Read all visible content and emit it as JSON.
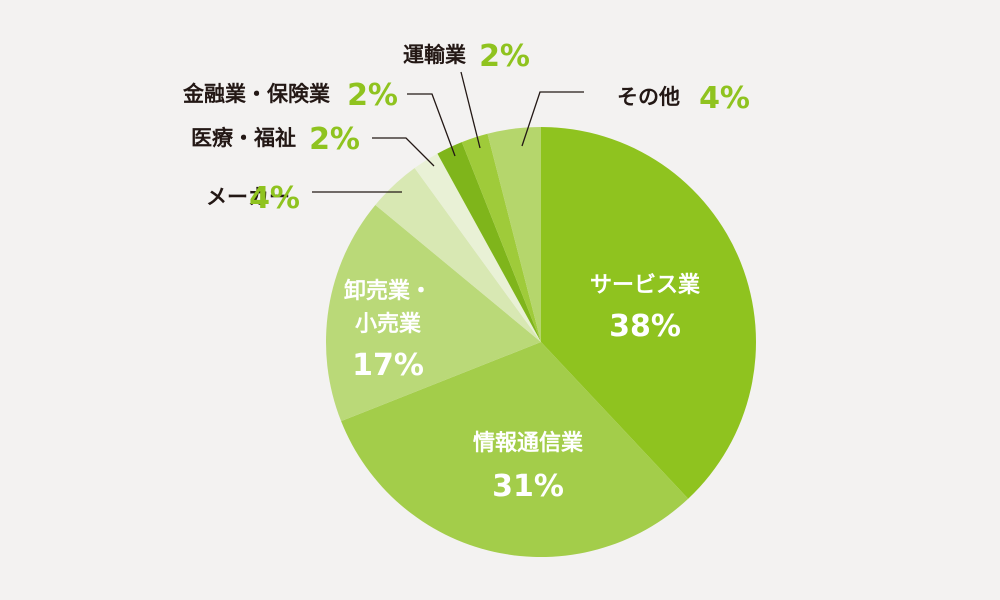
{
  "chart_data": {
    "type": "pie",
    "start": "top",
    "direction": "clockwise",
    "slices": [
      {
        "label": "サービス業",
        "value": 38,
        "value_label": "38%",
        "color": "#8fc31f",
        "label_color": "#ffffff",
        "label_inside": true
      },
      {
        "label": "情報通信業",
        "value": 31,
        "value_label": "31%",
        "color": "#a3cd4a",
        "label_color": "#ffffff",
        "label_inside": true
      },
      {
        "label": "卸売業・小売業",
        "label_lines": [
          "卸売業・",
          "小売業"
        ],
        "value": 17,
        "value_label": "17%",
        "color": "#bad978",
        "label_color": "#ffffff",
        "label_inside": true
      },
      {
        "label": "メーカー",
        "value": 4,
        "value_label": "4%",
        "color": "#d8e8b3",
        "label_color": "#231815",
        "pct_color": "#8fc31f",
        "label_inside": false
      },
      {
        "label": "医療・福祉",
        "value": 2,
        "value_label": "2%",
        "color": "#e9f1d6",
        "label_color": "#231815",
        "pct_color": "#8fc31f",
        "label_inside": false
      },
      {
        "label": "金融業・保険業",
        "value": 2,
        "value_label": "2%",
        "color": "#7fb51b",
        "label_color": "#231815",
        "pct_color": "#8fc31f",
        "label_inside": false
      },
      {
        "label": "運輸業",
        "value": 2,
        "value_label": "2%",
        "color": "#9fcb3a",
        "label_color": "#231815",
        "pct_color": "#8fc31f",
        "label_inside": false
      },
      {
        "label": "その他",
        "value": 4,
        "value_label": "4%",
        "color": "#b5d66c",
        "label_color": "#231815",
        "pct_color": "#8fc31f",
        "label_inside": false
      }
    ]
  }
}
